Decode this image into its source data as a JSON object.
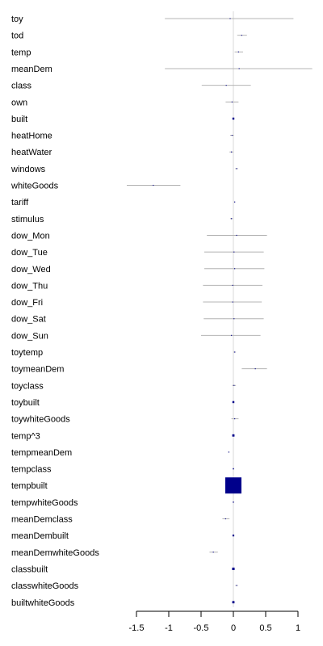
{
  "chart_data": {
    "type": "forest",
    "title": "",
    "xlabel": "",
    "ylabel": "",
    "xlim": [
      -1.5,
      1.0
    ],
    "xticks": [
      -1.5,
      -1,
      -0.5,
      0,
      0.5,
      1
    ],
    "xtick_labels": [
      "-1.5",
      "-1",
      "-0.5",
      "0",
      "0.5",
      "1"
    ],
    "reference_line": 0,
    "grid": false,
    "colors": {
      "ci_line": "#b4b4b4",
      "point": "#00008b",
      "zero_line": "#d8d8d8",
      "axis": "#000000"
    },
    "rows": [
      {
        "label": "toy",
        "estimate": -0.05,
        "lower": -1.06,
        "upper": 0.93,
        "weight": 0.3
      },
      {
        "label": "tod",
        "estimate": 0.13,
        "lower": 0.06,
        "upper": 0.21,
        "weight": 0.3
      },
      {
        "label": "temp",
        "estimate": 0.08,
        "lower": 0.02,
        "upper": 0.15,
        "weight": 0.3
      },
      {
        "label": "meanDem",
        "estimate": 0.09,
        "lower": -1.06,
        "upper": 1.22,
        "weight": 0.3
      },
      {
        "label": "class",
        "estimate": -0.11,
        "lower": -0.49,
        "upper": 0.27,
        "weight": 0.3
      },
      {
        "label": "own",
        "estimate": -0.02,
        "lower": -0.12,
        "upper": 0.08,
        "weight": 0.3
      },
      {
        "label": "built",
        "estimate": 0.0,
        "lower": -0.01,
        "upper": 0.01,
        "weight": 1.5
      },
      {
        "label": "heatHome",
        "estimate": -0.02,
        "lower": -0.05,
        "upper": 0.01,
        "weight": 0.3
      },
      {
        "label": "heatWater",
        "estimate": -0.03,
        "lower": -0.06,
        "upper": 0.0,
        "weight": 0.3
      },
      {
        "label": "windows",
        "estimate": 0.05,
        "lower": 0.03,
        "upper": 0.07,
        "weight": 0.3
      },
      {
        "label": "whiteGoods",
        "estimate": -1.24,
        "lower": -1.65,
        "upper": -0.82,
        "weight": 0.3
      },
      {
        "label": "tariff",
        "estimate": 0.02,
        "lower": 0.01,
        "upper": 0.03,
        "weight": 0.3
      },
      {
        "label": "stimulus",
        "estimate": -0.03,
        "lower": -0.05,
        "upper": -0.01,
        "weight": 0.3
      },
      {
        "label": "dow_Mon",
        "estimate": 0.05,
        "lower": -0.41,
        "upper": 0.52,
        "weight": 0.3
      },
      {
        "label": "dow_Tue",
        "estimate": 0.01,
        "lower": -0.45,
        "upper": 0.47,
        "weight": 0.3
      },
      {
        "label": "dow_Wed",
        "estimate": 0.02,
        "lower": -0.45,
        "upper": 0.48,
        "weight": 0.3
      },
      {
        "label": "dow_Thu",
        "estimate": -0.01,
        "lower": -0.47,
        "upper": 0.45,
        "weight": 0.3
      },
      {
        "label": "dow_Fri",
        "estimate": -0.01,
        "lower": -0.47,
        "upper": 0.44,
        "weight": 0.3
      },
      {
        "label": "dow_Sat",
        "estimate": 0.01,
        "lower": -0.46,
        "upper": 0.47,
        "weight": 0.3
      },
      {
        "label": "dow_Sun",
        "estimate": -0.03,
        "lower": -0.5,
        "upper": 0.42,
        "weight": 0.3
      },
      {
        "label": "toytemp",
        "estimate": 0.02,
        "lower": 0.0,
        "upper": 0.04,
        "weight": 0.3
      },
      {
        "label": "toymeanDem",
        "estimate": 0.34,
        "lower": 0.13,
        "upper": 0.52,
        "weight": 0.3
      },
      {
        "label": "toyclass",
        "estimate": 0.01,
        "lower": -0.02,
        "upper": 0.04,
        "weight": 0.3
      },
      {
        "label": "toybuilt",
        "estimate": 0.0,
        "lower": -0.01,
        "upper": 0.01,
        "weight": 1.5
      },
      {
        "label": "toywhiteGoods",
        "estimate": 0.02,
        "lower": -0.03,
        "upper": 0.08,
        "weight": 0.3
      },
      {
        "label": "temp^3",
        "estimate": 0.0,
        "lower": -0.01,
        "upper": 0.01,
        "weight": 2.0
      },
      {
        "label": "tempmeanDem",
        "estimate": -0.07,
        "lower": -0.08,
        "upper": -0.06,
        "weight": 0.3
      },
      {
        "label": "tempclass",
        "estimate": 0.0,
        "lower": -0.01,
        "upper": 0.01,
        "weight": 0.6
      },
      {
        "label": "tempbuilt",
        "estimate": 0.0,
        "lower": -0.01,
        "upper": 0.01,
        "weight": 100
      },
      {
        "label": "tempwhiteGoods",
        "estimate": 0.0,
        "lower": -0.01,
        "upper": 0.01,
        "weight": 0.5
      },
      {
        "label": "meanDemclass",
        "estimate": -0.12,
        "lower": -0.17,
        "upper": -0.06,
        "weight": 0.3
      },
      {
        "label": "meanDembuilt",
        "estimate": 0.0,
        "lower": -0.01,
        "upper": 0.01,
        "weight": 1.2
      },
      {
        "label": "meanDemwhiteGoods",
        "estimate": -0.31,
        "lower": -0.37,
        "upper": -0.24,
        "weight": 0.3
      },
      {
        "label": "classbuilt",
        "estimate": 0.0,
        "lower": -0.01,
        "upper": 0.01,
        "weight": 2.4
      },
      {
        "label": "classwhiteGoods",
        "estimate": 0.05,
        "lower": 0.03,
        "upper": 0.07,
        "weight": 0.3
      },
      {
        "label": "builtwhiteGoods",
        "estimate": 0.0,
        "lower": -0.01,
        "upper": 0.01,
        "weight": 2.0
      }
    ]
  }
}
